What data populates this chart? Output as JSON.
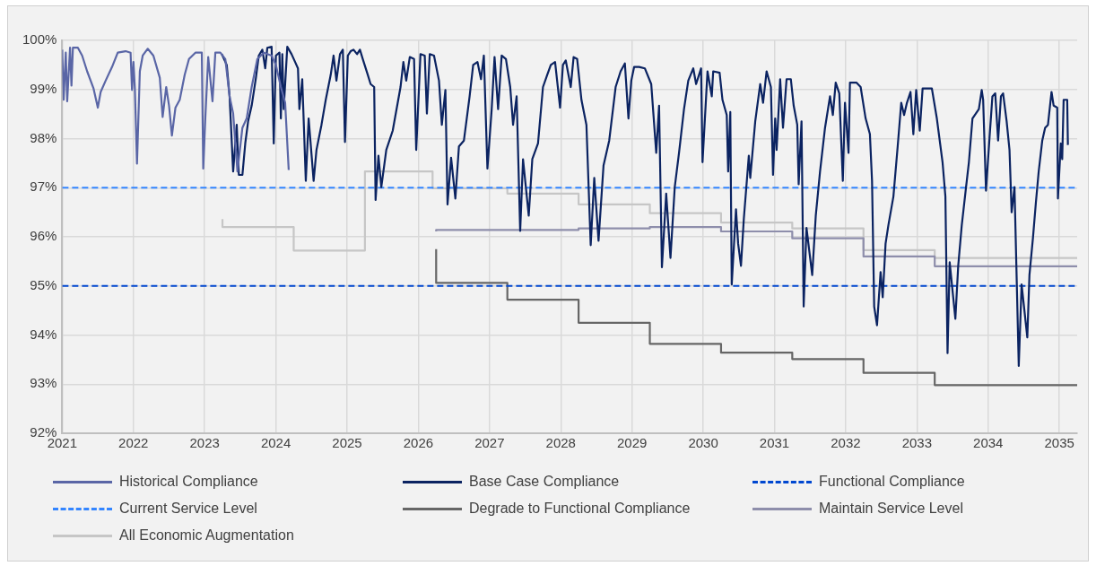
{
  "chart_data": {
    "type": "line",
    "xlim": [
      2021,
      2035.25
    ],
    "xticks": [
      2021,
      2022,
      2023,
      2024,
      2025,
      2026,
      2027,
      2028,
      2029,
      2030,
      2031,
      2032,
      2033,
      2034,
      2035
    ],
    "ylim": [
      92,
      100
    ],
    "yticks": [
      {
        "value": 92,
        "label": "92%"
      },
      {
        "value": 93,
        "label": "93%"
      },
      {
        "value": 94,
        "label": "94%"
      },
      {
        "value": 95,
        "label": "95%"
      },
      {
        "value": 96,
        "label": "96%"
      },
      {
        "value": 97,
        "label": "97%"
      },
      {
        "value": 98,
        "label": "98%"
      },
      {
        "value": 99,
        "label": "99%"
      },
      {
        "value": 100,
        "label": "100%"
      }
    ],
    "grid": true,
    "legend": "bottom",
    "series": [
      {
        "name": "Historical Compliance",
        "type": "line",
        "color": "#5a66a6",
        "x": [
          2021.0,
          2021.02,
          2021.05,
          2021.07,
          2021.11,
          2021.13,
          2021.15,
          2021.22,
          2021.28,
          2021.35,
          2021.44,
          2021.5,
          2021.54,
          2021.61,
          2021.7,
          2021.78,
          2021.89,
          2021.96,
          2021.98,
          2022.0,
          2022.02,
          2022.05,
          2022.09,
          2022.13,
          2022.2,
          2022.28,
          2022.37,
          2022.41,
          2022.46,
          2022.5,
          2022.54,
          2022.59,
          2022.65,
          2022.72,
          2022.78,
          2022.87,
          2022.96,
          2022.98,
          2023.01,
          2023.05,
          2023.11,
          2023.15,
          2023.22,
          2023.29,
          2023.35,
          2023.4,
          2023.46,
          2023.53,
          2023.59,
          2023.66,
          2023.74,
          2023.83,
          2023.94,
          2024.0,
          2024.07,
          2024.13,
          2024.18
        ],
        "values": [
          99.81,
          98.79,
          99.75,
          98.76,
          99.85,
          99.08,
          99.85,
          99.85,
          99.69,
          99.37,
          99.02,
          98.63,
          98.95,
          99.18,
          99.46,
          99.75,
          99.78,
          99.75,
          98.99,
          99.56,
          99.02,
          97.49,
          99.37,
          99.69,
          99.83,
          99.69,
          99.24,
          98.44,
          99.05,
          98.67,
          98.06,
          98.63,
          98.79,
          99.3,
          99.62,
          99.75,
          99.75,
          97.39,
          98.44,
          99.66,
          98.76,
          99.75,
          99.75,
          99.62,
          98.86,
          98.51,
          97.33,
          98.22,
          98.41,
          99.05,
          99.62,
          99.75,
          99.69,
          99.5,
          99.05,
          98.73,
          97.36
        ]
      },
      {
        "name": "Base Case Compliance",
        "type": "line",
        "color": "#0b2361",
        "x": [
          2023.24,
          2023.31,
          2023.35,
          2023.4,
          2023.45,
          2023.48,
          2023.53,
          2023.57,
          2023.61,
          2023.66,
          2023.72,
          2023.76,
          2023.81,
          2023.85,
          2023.88,
          2023.94,
          2023.97,
          2024.0,
          2024.05,
          2024.07,
          2024.09,
          2024.11,
          2024.16,
          2024.22,
          2024.27,
          2024.31,
          2024.33,
          2024.37,
          2024.42,
          2024.46,
          2024.53,
          2024.57,
          2024.64,
          2024.7,
          2024.77,
          2024.81,
          2024.85,
          2024.9,
          2024.94,
          2024.97,
          2025.01,
          2025.05,
          2025.09,
          2025.14,
          2025.18,
          2025.22,
          2025.29,
          2025.33,
          2025.38,
          2025.4,
          2025.44,
          2025.48,
          2025.55,
          2025.64,
          2025.75,
          2025.79,
          2025.83,
          2025.88,
          2025.94,
          2025.97,
          2026.03,
          2026.09,
          2026.12,
          2026.16,
          2026.22,
          2026.29,
          2026.33,
          2026.38,
          2026.41,
          2026.46,
          2026.52,
          2026.57,
          2026.64,
          2026.72,
          2026.77,
          2026.83,
          2026.88,
          2026.92,
          2026.97,
          2027.03,
          2027.07,
          2027.12,
          2027.17,
          2027.23,
          2027.29,
          2027.33,
          2027.38,
          2027.43,
          2027.47,
          2027.55,
          2027.6,
          2027.68,
          2027.75,
          2027.81,
          2027.86,
          2027.92,
          2027.99,
          2028.03,
          2028.07,
          2028.14,
          2028.18,
          2028.23,
          2028.29,
          2028.36,
          2028.42,
          2028.47,
          2028.53,
          2028.6,
          2028.68,
          2028.77,
          2028.84,
          2028.9,
          2028.95,
          2028.99,
          2029.03,
          2029.1,
          2029.18,
          2029.27,
          2029.34,
          2029.38,
          2029.42,
          2029.48,
          2029.54,
          2029.6,
          2029.66,
          2029.73,
          2029.79,
          2029.86,
          2029.9,
          2029.97,
          2029.99,
          2030.06,
          2030.12,
          2030.14,
          2030.23,
          2030.27,
          2030.33,
          2030.35,
          2030.38,
          2030.4,
          2030.46,
          2030.49,
          2030.53,
          2030.57,
          2030.64,
          2030.66,
          2030.73,
          2030.8,
          2030.84,
          2030.89,
          2030.95,
          2030.98,
          2031.01,
          2031.03,
          2031.08,
          2031.12,
          2031.17,
          2031.23,
          2031.27,
          2031.32,
          2031.34,
          2031.38,
          2031.41,
          2031.45,
          2031.53,
          2031.58,
          2031.64,
          2031.71,
          2031.78,
          2031.82,
          2031.86,
          2031.91,
          2031.96,
          2031.99,
          2032.04,
          2032.06,
          2032.15,
          2032.21,
          2032.28,
          2032.34,
          2032.37,
          2032.4,
          2032.44,
          2032.49,
          2032.52,
          2032.56,
          2032.6,
          2032.67,
          2032.73,
          2032.78,
          2032.82,
          2032.86,
          2032.91,
          2032.95,
          2032.99,
          2033.04,
          2033.08,
          2033.21,
          2033.28,
          2033.36,
          2033.4,
          2033.43,
          2033.46,
          2033.54,
          2033.58,
          2033.63,
          2033.69,
          2033.73,
          2033.78,
          2033.87,
          2033.91,
          2033.93,
          2033.97,
          2034.02,
          2034.06,
          2034.1,
          2034.14,
          2034.18,
          2034.21,
          2034.26,
          2034.3,
          2034.33,
          2034.37,
          2034.43,
          2034.47,
          2034.55,
          2034.58,
          2034.63,
          2034.67,
          2034.71,
          2034.76,
          2034.8,
          2034.84,
          2034.89,
          2034.92,
          2034.97,
          2034.98,
          2035.02,
          2035.04,
          2035.06,
          2035.11,
          2035.12
        ],
        "values": [
          99.72,
          99.5,
          98.86,
          97.33,
          98.28,
          97.26,
          97.26,
          97.9,
          98.35,
          98.67,
          99.24,
          99.69,
          99.81,
          99.43,
          99.85,
          99.87,
          97.9,
          99.69,
          99.75,
          98.41,
          99.72,
          98.6,
          99.87,
          99.72,
          99.56,
          99.43,
          98.6,
          99.21,
          97.14,
          98.41,
          97.14,
          97.77,
          98.28,
          98.79,
          99.3,
          99.69,
          99.18,
          99.72,
          99.81,
          97.93,
          99.69,
          99.78,
          99.81,
          99.72,
          99.81,
          99.62,
          99.3,
          99.11,
          99.05,
          96.75,
          97.65,
          97.01,
          97.77,
          98.16,
          99.05,
          99.56,
          99.18,
          99.66,
          99.62,
          97.77,
          99.72,
          99.69,
          98.51,
          99.72,
          99.69,
          99.18,
          98.28,
          98.99,
          96.66,
          97.61,
          96.78,
          97.84,
          97.96,
          98.86,
          99.5,
          99.56,
          99.21,
          99.69,
          97.39,
          98.6,
          99.66,
          98.6,
          99.69,
          99.62,
          99.05,
          98.28,
          98.86,
          96.12,
          97.58,
          96.43,
          97.58,
          97.9,
          99.05,
          99.3,
          99.5,
          99.56,
          98.63,
          99.5,
          99.59,
          99.05,
          99.66,
          99.62,
          98.79,
          98.28,
          95.83,
          97.2,
          95.92,
          97.45,
          97.96,
          99.05,
          99.37,
          99.53,
          98.41,
          99.18,
          99.46,
          99.46,
          99.43,
          99.11,
          97.71,
          98.67,
          95.38,
          96.88,
          95.57,
          97.01,
          97.71,
          98.6,
          99.18,
          99.43,
          99.11,
          99.43,
          97.52,
          99.37,
          98.86,
          99.37,
          99.34,
          98.79,
          98.48,
          97.33,
          98.54,
          95.03,
          96.56,
          95.86,
          95.41,
          96.37,
          97.65,
          97.2,
          98.35,
          99.11,
          98.73,
          99.37,
          99.05,
          97.26,
          98.41,
          97.77,
          99.21,
          98.22,
          99.21,
          99.21,
          98.67,
          98.28,
          97.07,
          98.35,
          94.58,
          96.18,
          95.22,
          96.43,
          97.33,
          98.22,
          98.86,
          98.48,
          99.14,
          98.92,
          97.14,
          98.73,
          97.71,
          99.14,
          99.14,
          99.05,
          98.41,
          98.09,
          97.14,
          94.58,
          94.2,
          95.28,
          94.77,
          95.86,
          96.24,
          96.82,
          97.84,
          98.73,
          98.48,
          98.73,
          98.95,
          98.09,
          98.99,
          98.16,
          99.02,
          99.02,
          98.41,
          97.52,
          96.82,
          93.63,
          95.48,
          94.33,
          95.41,
          96.24,
          97.01,
          97.52,
          98.41,
          98.6,
          98.99,
          98.79,
          96.94,
          98.03,
          98.86,
          98.92,
          97.96,
          98.86,
          98.92,
          98.35,
          97.77,
          96.5,
          97.01,
          93.37,
          95.03,
          93.95,
          95.22,
          95.99,
          96.69,
          97.33,
          97.96,
          98.22,
          98.28,
          98.95,
          98.67,
          98.63,
          96.78,
          97.9,
          97.58,
          98.79,
          98.79,
          97.87
        ]
      },
      {
        "name": "Functional Compliance",
        "type": "line",
        "line_style": "dashed",
        "color": "#0047d0",
        "x": [
          2021,
          2035.25
        ],
        "values": [
          95,
          95
        ]
      },
      {
        "name": "Current Service Level",
        "type": "line",
        "line_style": "dashed",
        "color": "#3385ff",
        "x": [
          2021,
          2035.25
        ],
        "values": [
          97,
          97
        ]
      },
      {
        "name": "Degrade to Functional Compliance",
        "type": "step",
        "color": "#666666",
        "x": [
          2026.25,
          2027.25,
          2028.25,
          2029.25,
          2030.25,
          2031.25,
          2032.25,
          2033.25,
          2034.25,
          2035.25
        ],
        "values": [
          95.75,
          95.06,
          94.72,
          94.25,
          93.82,
          93.64,
          93.51,
          93.23,
          92.98,
          92.98
        ]
      },
      {
        "name": "Maintain Service Level",
        "type": "step",
        "color": "#8e8eab",
        "x": [
          2026.25,
          2027.25,
          2028.25,
          2029.25,
          2030.25,
          2031.25,
          2032.25,
          2033.25,
          2034.25,
          2035.25
        ],
        "values": [
          96.11,
          96.14,
          96.14,
          96.17,
          96.2,
          96.11,
          95.97,
          95.6,
          95.4,
          95.4
        ]
      },
      {
        "name": "All Economic Augmentation",
        "type": "step",
        "color": "#c6c6c6",
        "x": [
          2023.25,
          2024.25,
          2025.25,
          2026.2,
          2027.25,
          2028.25,
          2029.25,
          2030.25,
          2031.25,
          2032.25,
          2033.25,
          2034.25,
          2035.25
        ],
        "values": [
          96.36,
          96.2,
          95.72,
          97.33,
          96.99,
          96.88,
          96.66,
          96.48,
          96.29,
          96.17,
          95.73,
          95.57,
          95.57
        ]
      }
    ]
  }
}
